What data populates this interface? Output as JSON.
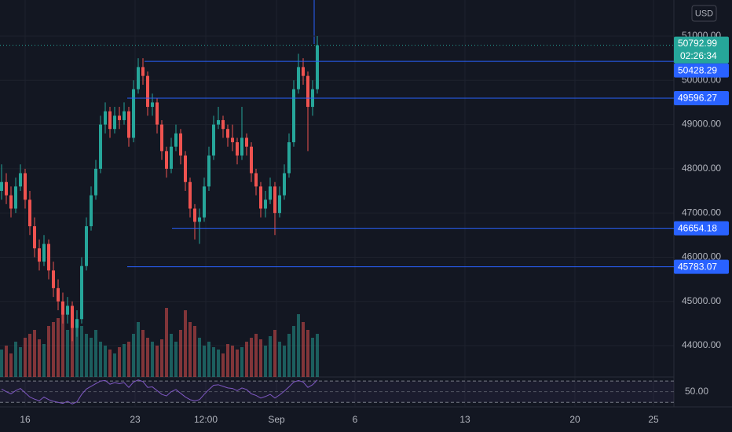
{
  "chart_data": {
    "type": "candlestick",
    "currency": "USD",
    "x": [
      -1.5,
      -1.2,
      -0.9,
      -0.6,
      -0.3,
      0,
      0.3,
      0.6,
      0.9,
      1.2,
      1.5,
      1.8,
      2.1,
      2.4,
      2.7,
      3,
      3.3,
      3.6,
      3.9,
      4.2,
      4.5,
      4.8,
      5.1,
      5.4,
      5.7,
      6,
      6.3,
      6.6,
      6.9,
      7.2,
      7.5,
      7.8,
      8.1,
      8.4,
      8.7,
      9,
      9.3,
      9.6,
      9.9,
      10.2,
      10.5,
      10.8,
      11.1,
      11.4,
      11.7,
      12,
      12.3,
      12.6,
      12.9,
      13.2,
      13.5,
      13.8,
      14.1,
      14.4,
      14.7,
      15,
      15.3,
      15.6,
      15.9,
      16.2,
      16.5,
      16.8,
      17.1,
      17.4,
      17.7,
      18,
      18.3,
      18.6
    ],
    "open": [
      47500,
      47700,
      47400,
      47100,
      47600,
      47900,
      47300,
      46700,
      46200,
      45900,
      46300,
      45700,
      45300,
      45000,
      44700,
      44900,
      44400,
      44600,
      45800,
      46700,
      47400,
      48000,
      49000,
      49300,
      48900,
      49200,
      49100,
      49300,
      48700,
      49800,
      50300,
      50100,
      49400,
      49500,
      49000,
      48400,
      48000,
      48500,
      48800,
      48300,
      47700,
      47100,
      46800,
      46900,
      47600,
      48300,
      49000,
      49100,
      48900,
      48700,
      48600,
      48300,
      48700,
      48500,
      47900,
      47600,
      47100,
      47300,
      47600,
      47000,
      47400,
      47900,
      48600,
      49800,
      50300,
      50100,
      49400,
      49800
    ],
    "high": [
      48100,
      47900,
      47600,
      47800,
      48100,
      48000,
      47500,
      46900,
      46400,
      46500,
      46400,
      45900,
      45500,
      45200,
      45100,
      45000,
      44800,
      46000,
      46900,
      47600,
      48200,
      49200,
      49500,
      49400,
      49400,
      49400,
      49500,
      49400,
      50000,
      50500,
      50500,
      50200,
      49700,
      49600,
      49100,
      48500,
      48700,
      49000,
      48900,
      48400,
      47800,
      47200,
      47100,
      47800,
      48500,
      49200,
      49400,
      49200,
      49000,
      49000,
      48700,
      49400,
      48800,
      48600,
      48000,
      47700,
      47500,
      47800,
      47700,
      47600,
      48100,
      48800,
      50000,
      50600,
      50500,
      50200,
      50000,
      51000
    ],
    "low": [
      47300,
      47200,
      46900,
      47000,
      47500,
      47100,
      46500,
      46000,
      45700,
      45800,
      45500,
      45100,
      44800,
      44500,
      44500,
      44100,
      44200,
      44500,
      45700,
      46600,
      47300,
      47900,
      48800,
      48700,
      48800,
      48900,
      49000,
      48500,
      48600,
      49700,
      49900,
      49200,
      49200,
      48800,
      48200,
      47800,
      47900,
      48400,
      48100,
      47500,
      46900,
      46400,
      46300,
      46800,
      47500,
      48200,
      48900,
      48700,
      48500,
      48400,
      48100,
      48200,
      48300,
      47700,
      47400,
      46900,
      46900,
      47200,
      46500,
      46900,
      47300,
      47800,
      48500,
      49700,
      49900,
      48400,
      49200,
      49700
    ],
    "close": [
      47700,
      47400,
      47100,
      47600,
      47900,
      47300,
      46700,
      46200,
      45900,
      46300,
      45700,
      45300,
      45000,
      44700,
      44900,
      44400,
      44600,
      45800,
      46700,
      47400,
      48000,
      49000,
      49300,
      48900,
      49200,
      49100,
      49300,
      48700,
      49800,
      50300,
      50100,
      49400,
      49500,
      49000,
      48400,
      48000,
      48500,
      48800,
      48300,
      47700,
      47100,
      46800,
      46900,
      47600,
      48300,
      49000,
      49100,
      48900,
      48700,
      48600,
      48300,
      48700,
      48500,
      47900,
      47600,
      47100,
      47300,
      47600,
      47000,
      47400,
      47900,
      48600,
      49800,
      50300,
      50100,
      49400,
      49800,
      50792.99
    ],
    "volume": [
      35,
      40,
      30,
      45,
      38,
      50,
      55,
      60,
      48,
      42,
      65,
      70,
      75,
      80,
      60,
      85,
      70,
      65,
      55,
      50,
      60,
      45,
      40,
      35,
      30,
      38,
      42,
      45,
      55,
      70,
      60,
      50,
      45,
      40,
      48,
      88,
      55,
      45,
      60,
      85,
      70,
      65,
      50,
      40,
      45,
      38,
      35,
      30,
      42,
      40,
      35,
      38,
      45,
      50,
      55,
      48,
      40,
      52,
      60,
      45,
      40,
      55,
      65,
      80,
      70,
      60,
      50,
      55
    ],
    "rsi": [
      55,
      50,
      46,
      52,
      56,
      48,
      40,
      36,
      33,
      40,
      35,
      32,
      30,
      28,
      32,
      27,
      31,
      45,
      55,
      60,
      65,
      70,
      71,
      64,
      67,
      65,
      67,
      58,
      68,
      72,
      69,
      58,
      59,
      52,
      45,
      42,
      50,
      54,
      47,
      40,
      35,
      33,
      35,
      45,
      54,
      62,
      63,
      60,
      57,
      56,
      52,
      57,
      54,
      46,
      43,
      38,
      41,
      45,
      38,
      44,
      51,
      59,
      68,
      71,
      68,
      58,
      63,
      72
    ],
    "xlim": [
      -1.6,
      41.3
    ],
    "xticks": [
      {
        "value": 0,
        "label": "16"
      },
      {
        "value": 7,
        "label": "23"
      },
      {
        "value": 11.5,
        "label": "12:00"
      },
      {
        "value": 16,
        "label": "Sep"
      },
      {
        "value": 21,
        "label": "6"
      },
      {
        "value": 28,
        "label": "13"
      },
      {
        "value": 35,
        "label": "20"
      },
      {
        "value": 40,
        "label": "25"
      }
    ],
    "ylim": [
      43290,
      51817
    ],
    "yticks": [
      {
        "value": 44000,
        "label": "44000.00"
      },
      {
        "value": 45000,
        "label": "45000.00"
      },
      {
        "value": 46000,
        "label": "46000.00"
      },
      {
        "value": 47000,
        "label": "47000.00"
      },
      {
        "value": 48000,
        "label": "48000.00"
      },
      {
        "value": 49000,
        "label": "49000.00"
      },
      {
        "value": 50000,
        "label": "50000.00"
      },
      {
        "value": 51000,
        "label": "51000.00"
      }
    ],
    "levels": [
      {
        "value": 50428.29,
        "label": "50428.29",
        "from": 7.6
      },
      {
        "value": 49596.27,
        "label": "49596.27",
        "from": 6.5
      },
      {
        "value": 46654.18,
        "label": "46654.18",
        "from": 9.35
      },
      {
        "value": 45783.07,
        "label": "45783.07",
        "from": 6.5
      }
    ],
    "last_price": {
      "value": 50792.99,
      "label": "50792.99",
      "countdown": "02:26:34"
    },
    "volume_lim": [
      0,
      100
    ],
    "rsi_lim": [
      23,
      76
    ],
    "rsi_yticks": [
      {
        "value": 50,
        "label": "50.00"
      }
    ],
    "rsi_bands": [
      30,
      70
    ],
    "colors": {
      "up": "#26a69a",
      "down": "#ef5350",
      "level": "#2962ff",
      "rsi": "#7e57c2"
    },
    "grid": true
  }
}
